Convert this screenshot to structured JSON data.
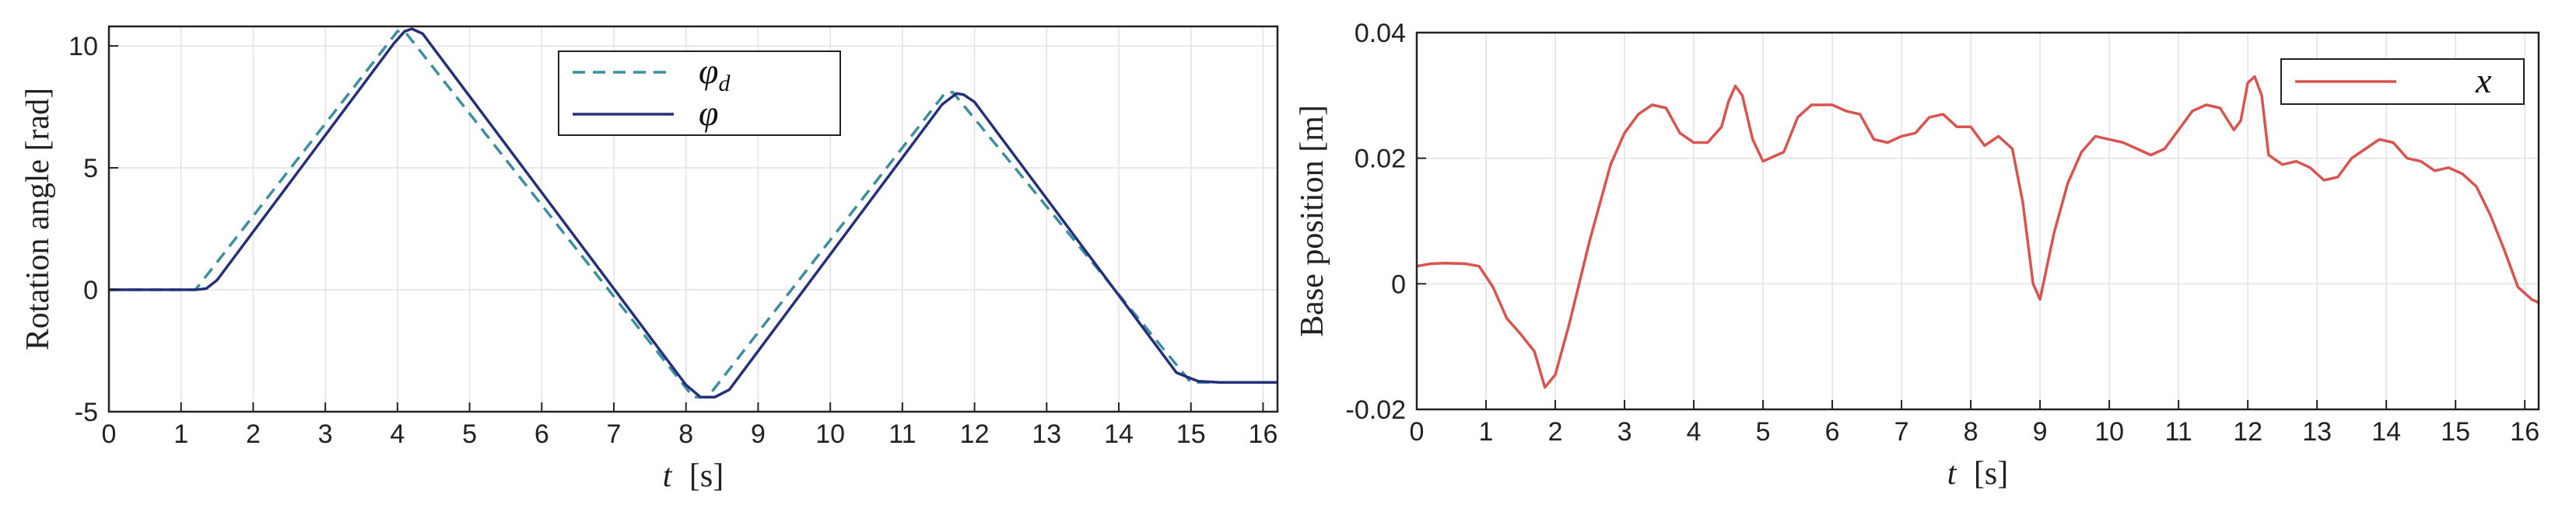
{
  "chart_data": [
    {
      "type": "line",
      "xlabel_var": "t",
      "xlabel_unit": "[s]",
      "ylabel": "Rotation angle [rad]",
      "xlim": [
        0,
        16.2
      ],
      "ylim": [
        -5,
        10.8
      ],
      "xticks": [
        0,
        1,
        2,
        3,
        4,
        5,
        6,
        7,
        8,
        9,
        10,
        11,
        12,
        13,
        14,
        15,
        16
      ],
      "yticks": [
        -5,
        0,
        5,
        10
      ],
      "grid": true,
      "legend_position": "top-center",
      "series": [
        {
          "name": "φ",
          "subscript": "d",
          "style": "dashed",
          "color": "#3a8fa0",
          "x": [
            0,
            1.2,
            4.0,
            4.1,
            8.1,
            8.3,
            11.6,
            11.7,
            15.0,
            15.3,
            16.2
          ],
          "y": [
            0,
            0,
            10.6,
            10.6,
            -4.4,
            -4.4,
            8.1,
            8.1,
            -3.8,
            -3.8,
            -3.8
          ]
        },
        {
          "name": "φ",
          "style": "solid",
          "color": "#25307a",
          "x": [
            0,
            1.2,
            1.35,
            1.5,
            3.95,
            4.1,
            4.2,
            4.35,
            8.0,
            8.2,
            8.4,
            8.6,
            11.55,
            11.75,
            11.85,
            12.0,
            14.8,
            15.1,
            15.4,
            16.2
          ],
          "y": [
            0,
            0,
            0.05,
            0.4,
            10.1,
            10.6,
            10.7,
            10.5,
            -3.9,
            -4.4,
            -4.4,
            -4.1,
            7.6,
            8.05,
            8.0,
            7.7,
            -3.4,
            -3.75,
            -3.8,
            -3.8
          ]
        }
      ]
    },
    {
      "type": "line",
      "xlabel_var": "t",
      "xlabel_unit": "[s]",
      "ylabel": "Base position [m]",
      "xlim": [
        0,
        16.2
      ],
      "ylim": [
        -0.02,
        0.04
      ],
      "xticks": [
        0,
        1,
        2,
        3,
        4,
        5,
        6,
        7,
        8,
        9,
        10,
        11,
        12,
        13,
        14,
        15,
        16
      ],
      "yticks": [
        -0.02,
        0,
        0.02,
        0.04
      ],
      "ytick_labels": [
        "-0.02",
        "0",
        "0.02",
        "0.04"
      ],
      "grid": true,
      "legend_position": "top-right",
      "series": [
        {
          "name": "x",
          "style": "solid",
          "color": "#d9534f",
          "x": [
            0,
            0.2,
            0.4,
            0.7,
            0.9,
            1.1,
            1.3,
            1.5,
            1.7,
            1.85,
            2.0,
            2.2,
            2.5,
            2.8,
            3.0,
            3.2,
            3.4,
            3.6,
            3.8,
            4.0,
            4.2,
            4.4,
            4.5,
            4.6,
            4.7,
            4.85,
            5.0,
            5.3,
            5.5,
            5.7,
            6.0,
            6.2,
            6.4,
            6.6,
            6.8,
            7.0,
            7.2,
            7.4,
            7.6,
            7.8,
            8.0,
            8.2,
            8.4,
            8.6,
            8.75,
            8.9,
            9.0,
            9.2,
            9.4,
            9.6,
            9.8,
            10.0,
            10.2,
            10.4,
            10.6,
            10.8,
            11.0,
            11.2,
            11.4,
            11.6,
            11.8,
            11.9,
            12.0,
            12.1,
            12.2,
            12.3,
            12.5,
            12.7,
            12.9,
            13.1,
            13.3,
            13.5,
            13.7,
            13.9,
            14.1,
            14.3,
            14.5,
            14.7,
            14.9,
            15.1,
            15.3,
            15.5,
            15.7,
            15.9,
            16.1,
            16.2
          ],
          "y": [
            0.0028,
            0.0032,
            0.0033,
            0.0032,
            0.0028,
            -0.0005,
            -0.0055,
            -0.008,
            -0.0108,
            -0.0165,
            -0.0145,
            -0.0065,
            0.007,
            0.019,
            0.024,
            0.027,
            0.0285,
            0.028,
            0.024,
            0.0225,
            0.0225,
            0.025,
            0.029,
            0.0315,
            0.03,
            0.023,
            0.0195,
            0.021,
            0.0265,
            0.0285,
            0.0285,
            0.0275,
            0.027,
            0.023,
            0.0225,
            0.0235,
            0.024,
            0.0265,
            0.027,
            0.025,
            0.025,
            0.022,
            0.0235,
            0.0215,
            0.013,
            0.0,
            -0.0025,
            0.008,
            0.016,
            0.021,
            0.0235,
            0.023,
            0.0225,
            0.0215,
            0.0205,
            0.0215,
            0.0245,
            0.0275,
            0.0285,
            0.028,
            0.0245,
            0.026,
            0.032,
            0.033,
            0.03,
            0.0205,
            0.019,
            0.0195,
            0.0185,
            0.0165,
            0.017,
            0.02,
            0.0215,
            0.023,
            0.0225,
            0.02,
            0.0195,
            0.018,
            0.0185,
            0.0175,
            0.0155,
            0.011,
            0.0055,
            -0.0005,
            -0.0025,
            -0.003
          ]
        }
      ]
    }
  ]
}
